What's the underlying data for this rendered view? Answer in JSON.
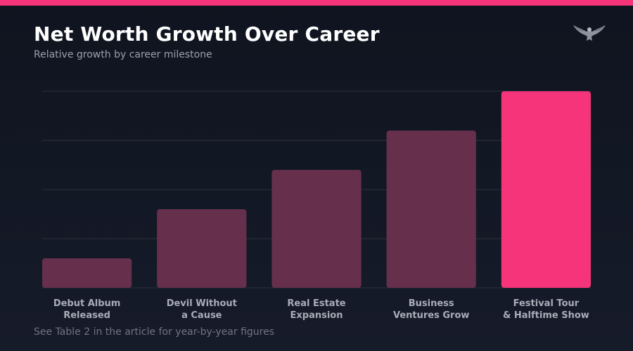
{
  "colors": {
    "accent": "#f5347a",
    "bar": "#66304c",
    "grid": "#2c3140"
  },
  "header": {
    "title": "Net Worth Growth Over Career",
    "subtitle": "Relative growth by career milestone"
  },
  "logo": {
    "icon": "eagle-icon"
  },
  "footer": {
    "note": "See Table 2 in the article for year-by-year figures"
  },
  "chart_data": {
    "type": "bar",
    "categories": [
      [
        "Debut Album",
        "Released"
      ],
      [
        "Devil Without",
        "a Cause"
      ],
      [
        "Real Estate",
        "Expansion"
      ],
      [
        "Business",
        "Ventures Grow"
      ],
      [
        "Festival Tour",
        "& Halftime Show"
      ]
    ],
    "values": [
      15,
      40,
      60,
      80,
      100
    ],
    "highlight_index": 4,
    "ylim": [
      0,
      100
    ],
    "grid": true,
    "y_tick_labels": false
  }
}
